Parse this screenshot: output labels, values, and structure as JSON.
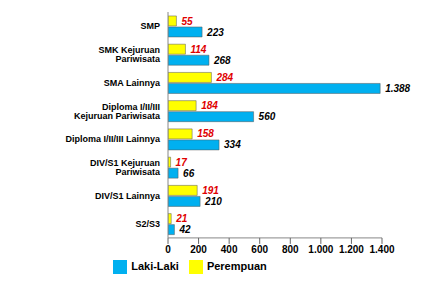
{
  "chart_data": {
    "type": "bar",
    "orientation": "horizontal",
    "categories": [
      "SMP",
      "SMK Kejuruan Pariwisata",
      "SMA Lainnya",
      "Diploma I/II/III Kejuruan Pariwisata",
      "Diploma I/II/III Lainnya",
      "DIV/S1 Kejuruan Pariwisata",
      "DIV/S1 Lainnya",
      "S2/S3"
    ],
    "series": [
      {
        "name": "Perempuan",
        "color": "#ffff00",
        "values": [
          55,
          114,
          284,
          184,
          158,
          17,
          191,
          21
        ]
      },
      {
        "name": "Laki-Laki",
        "color": "#00b0f0",
        "values": [
          223,
          268,
          1388,
          560,
          334,
          66,
          210,
          42
        ],
        "value_labels": [
          "223",
          "268",
          "1.388",
          "560",
          "334",
          "66",
          "210",
          "42"
        ]
      }
    ],
    "xlim": [
      0,
      1400
    ],
    "xticks": [
      0,
      200,
      400,
      600,
      800,
      {
        "value": 1000,
        "label": "1.000"
      },
      {
        "value": 1200,
        "label": "1.200"
      },
      {
        "value": 1400,
        "label": "1.400"
      }
    ],
    "data_labels": true,
    "legend": "bottom",
    "grid": false
  }
}
